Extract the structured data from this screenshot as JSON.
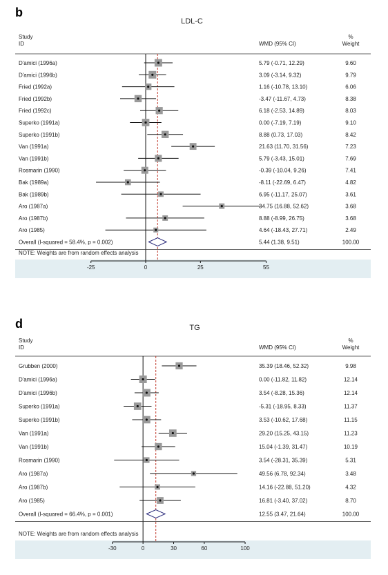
{
  "chart_data": [
    {
      "type": "forest",
      "panel": "b",
      "title": "LDL-C",
      "col_study": [
        "Study",
        "ID"
      ],
      "col_effect": "WMD (95% CI)",
      "col_weight": [
        "%",
        "Weight"
      ],
      "note": "NOTE: Weights are from random effects analysis",
      "null_value": 0,
      "pooled_value": 5.44,
      "xlim": [
        -35,
        58
      ],
      "ticks": [
        "-25",
        "0",
        "25",
        "55"
      ],
      "tick_values": [
        -25,
        0,
        25,
        55
      ],
      "studies": [
        {
          "id": "D'amici (1996a)",
          "wmd": 5.79,
          "lo": -0.71,
          "hi": 12.29,
          "ci_text": "5.79 (-0.71, 12.29)",
          "weight": 9.6,
          "weight_text": "9.60"
        },
        {
          "id": "D'amici (1996b)",
          "wmd": 3.09,
          "lo": -3.14,
          "hi": 9.32,
          "ci_text": "3.09 (-3.14, 9.32)",
          "weight": 9.79,
          "weight_text": "9.79"
        },
        {
          "id": "Fried (1992a)",
          "wmd": 1.16,
          "lo": -10.78,
          "hi": 13.1,
          "ci_text": "1.16 (-10.78, 13.10)",
          "weight": 6.06,
          "weight_text": "6.06"
        },
        {
          "id": "Fried (1992b)",
          "wmd": -3.47,
          "lo": -11.67,
          "hi": 4.73,
          "ci_text": "-3.47 (-11.67, 4.73)",
          "weight": 8.38,
          "weight_text": "8.38"
        },
        {
          "id": "Fried (1992c)",
          "wmd": 6.18,
          "lo": -2.53,
          "hi": 14.89,
          "ci_text": "6.18 (-2.53, 14.89)",
          "weight": 8.03,
          "weight_text": "8.03"
        },
        {
          "id": "Superko (1991a)",
          "wmd": 0.0,
          "lo": -7.19,
          "hi": 7.19,
          "ci_text": "0.00 (-7.19, 7.19)",
          "weight": 9.1,
          "weight_text": "9.10"
        },
        {
          "id": "Superko (1991b)",
          "wmd": 8.88,
          "lo": 0.73,
          "hi": 17.03,
          "ci_text": "8.88 (0.73, 17.03)",
          "weight": 8.42,
          "weight_text": "8.42"
        },
        {
          "id": "Van (1991a)",
          "wmd": 21.63,
          "lo": 11.7,
          "hi": 31.56,
          "ci_text": "21.63 (11.70, 31.56)",
          "weight": 7.23,
          "weight_text": "7.23"
        },
        {
          "id": "Van (1991b)",
          "wmd": 5.79,
          "lo": -3.43,
          "hi": 15.01,
          "ci_text": "5.79 (-3.43, 15.01)",
          "weight": 7.69,
          "weight_text": "7.69"
        },
        {
          "id": "Rosmarin (1990)",
          "wmd": -0.39,
          "lo": -10.04,
          "hi": 9.26,
          "ci_text": "-0.39 (-10.04, 9.26)",
          "weight": 7.41,
          "weight_text": "7.41"
        },
        {
          "id": "Bak (1989a)",
          "wmd": -8.11,
          "lo": -22.69,
          "hi": 6.47,
          "ci_text": "-8.11 (-22.69, 6.47)",
          "weight": 4.82,
          "weight_text": "4.82"
        },
        {
          "id": "Bak (1989b)",
          "wmd": 6.95,
          "lo": -11.17,
          "hi": 25.07,
          "ci_text": "6.95 (-11.17, 25.07)",
          "weight": 3.61,
          "weight_text": "3.61"
        },
        {
          "id": "Aro (1987a)",
          "wmd": 34.75,
          "lo": 16.88,
          "hi": 52.62,
          "ci_text": "34.75 (16.88, 52.62)",
          "weight": 3.68,
          "weight_text": "3.68"
        },
        {
          "id": "Aro (1987b)",
          "wmd": 8.88,
          "lo": -8.99,
          "hi": 26.75,
          "ci_text": "8.88 (-8.99, 26.75)",
          "weight": 3.68,
          "weight_text": "3.68"
        },
        {
          "id": "Aro (1985)",
          "wmd": 4.64,
          "lo": -18.43,
          "hi": 27.71,
          "ci_text": "4.64 (-18.43, 27.71)",
          "weight": 2.49,
          "weight_text": "2.49"
        }
      ],
      "overall": {
        "label": "Overall  (I-squared = 58.4%, p = 0.002)",
        "wmd": 5.44,
        "lo": 1.38,
        "hi": 9.51,
        "ci_text": "5.44 (1.38, 9.51)",
        "weight_text": "100.00"
      }
    },
    {
      "type": "forest",
      "panel": "d",
      "title": "TG",
      "col_study": [
        "Study",
        "ID"
      ],
      "col_effect": "WMD (95% CI)",
      "col_weight": [
        "%",
        "Weight"
      ],
      "note": "NOTE: Weights are from random effects analysis",
      "null_value": 0,
      "pooled_value": 12.55,
      "xlim": [
        -40,
        102
      ],
      "ticks": [
        "-30",
        "0",
        "30",
        "60",
        "100"
      ],
      "tick_values": [
        -30,
        0,
        30,
        60,
        100
      ],
      "studies": [
        {
          "id": "Grubben (2000)",
          "wmd": 35.39,
          "lo": 18.46,
          "hi": 52.32,
          "ci_text": "35.39 (18.46, 52.32)",
          "weight": 9.98,
          "weight_text": "9.98"
        },
        {
          "id": "D'amici (1996a)",
          "wmd": 0.0,
          "lo": -11.82,
          "hi": 11.82,
          "ci_text": "0.00 (-11.82, 11.82)",
          "weight": 12.14,
          "weight_text": "12.14"
        },
        {
          "id": "D'amici (1996b)",
          "wmd": 3.54,
          "lo": -8.28,
          "hi": 15.36,
          "ci_text": "3.54 (-8.28, 15.36)",
          "weight": 12.14,
          "weight_text": "12.14"
        },
        {
          "id": "Superko (1991a)",
          "wmd": -5.31,
          "lo": -18.95,
          "hi": 8.33,
          "ci_text": "-5.31 (-18.95, 8.33)",
          "weight": 11.37,
          "weight_text": "11.37"
        },
        {
          "id": "Superko (1991b)",
          "wmd": 3.53,
          "lo": -10.62,
          "hi": 17.68,
          "ci_text": "3.53 (-10.62, 17.68)",
          "weight": 11.15,
          "weight_text": "11.15"
        },
        {
          "id": "Van (1991a)",
          "wmd": 29.2,
          "lo": 15.25,
          "hi": 43.15,
          "ci_text": "29.20 (15.25, 43.15)",
          "weight": 11.23,
          "weight_text": "11.23"
        },
        {
          "id": "Van (1991b)",
          "wmd": 15.04,
          "lo": -1.39,
          "hi": 31.47,
          "ci_text": "15.04 (-1.39, 31.47)",
          "weight": 10.19,
          "weight_text": "10.19"
        },
        {
          "id": "Rosmarin (1990)",
          "wmd": 3.54,
          "lo": -28.31,
          "hi": 35.39,
          "ci_text": "3.54 (-28.31, 35.39)",
          "weight": 5.31,
          "weight_text": "5.31"
        },
        {
          "id": "Aro (1987a)",
          "wmd": 49.56,
          "lo": 6.78,
          "hi": 92.34,
          "ci_text": "49.56 (6.78, 92.34)",
          "weight": 3.48,
          "weight_text": "3.48"
        },
        {
          "id": "Aro (1987b)",
          "wmd": 14.16,
          "lo": -22.88,
          "hi": 51.2,
          "ci_text": "14.16 (-22.88, 51.20)",
          "weight": 4.32,
          "weight_text": "4.32"
        },
        {
          "id": "Aro (1985)",
          "wmd": 16.81,
          "lo": -3.4,
          "hi": 37.02,
          "ci_text": "16.81 (-3.40, 37.02)",
          "weight": 8.7,
          "weight_text": "8.70"
        }
      ],
      "overall": {
        "label": "Overall  (I-squared = 66.4%, p = 0.001)",
        "wmd": 12.55,
        "lo": 3.47,
        "hi": 21.64,
        "ci_text": "12.55 (3.47, 21.64)",
        "weight_text": "100.00"
      }
    }
  ],
  "colors": {
    "band": "#e3eef2",
    "diamond": "#2a2a7a",
    "dashed": "#c0392b",
    "line": "#111111",
    "box": "#9a9a9a"
  }
}
